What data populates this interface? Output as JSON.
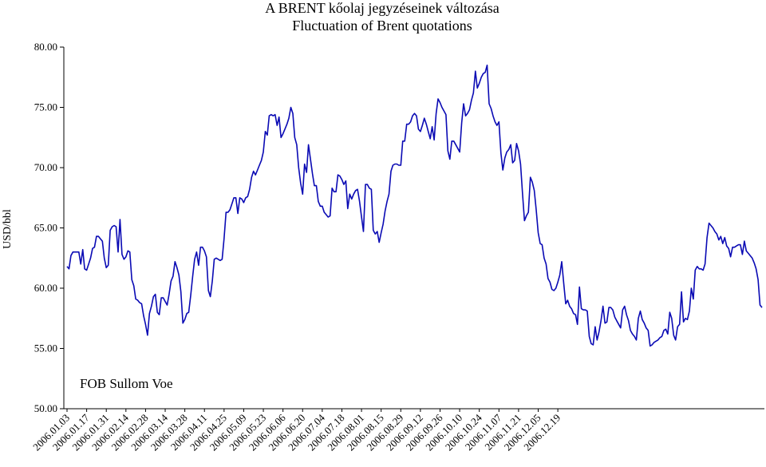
{
  "chart_data": {
    "type": "line",
    "title": "A BRENT kőolaj jegyzéseinek változása",
    "subtitle": "Fluctuation of Brent quotations",
    "ylabel": "USD/bbl",
    "xlabel": "",
    "annotation": "FOB Sullom Voe",
    "ylim": [
      50,
      80
    ],
    "y_ticks": [
      "50.00",
      "55.00",
      "60.00",
      "65.00",
      "70.00",
      "75.00",
      "80.00"
    ],
    "y_tick_values": [
      50,
      55,
      60,
      65,
      70,
      75,
      80
    ],
    "x_tick_labels": [
      "2006.01.03",
      "2006.01.17",
      "2006.01.31",
      "2006.02.14",
      "2006.02.28",
      "2006.03.14",
      "2006.03.28",
      "2006.04.11",
      "2006.04.25",
      "2006.05.09",
      "2006.05.23",
      "2006.06.06",
      "2006.06.20",
      "2006.07.04",
      "2006.07.18",
      "2006.08.01",
      "2006.08.15",
      "2006.08.29",
      "2006.09.12",
      "2006.09.26",
      "2006.10.10",
      "2006.10.24",
      "2006.11.07",
      "2006.11.21",
      "2006.12.05",
      "2006.12.19"
    ],
    "line_color": "#0a0ab4",
    "grid": false,
    "series": [
      {
        "values": [
          61.8,
          61.6,
          62.7,
          63.0,
          63.0,
          63.0,
          63.0,
          62.0,
          63.2,
          61.6,
          61.5,
          62.0,
          62.5,
          63.3,
          63.4,
          64.3,
          64.3,
          64.1,
          63.9,
          62.5,
          61.7,
          61.9,
          64.8,
          65.1,
          65.2,
          65.1,
          63.0,
          65.7,
          62.8,
          62.4,
          62.6,
          63.1,
          63.0,
          60.7,
          60.2,
          59.1,
          59.0,
          58.8,
          58.7,
          57.7,
          57.0,
          56.1,
          57.9,
          58.5,
          59.3,
          59.5,
          58.0,
          57.8,
          59.2,
          59.2,
          58.9,
          58.6,
          59.5,
          60.6,
          61.0,
          62.2,
          61.7,
          61.1,
          59.7,
          57.1,
          57.4,
          57.9,
          58.0,
          59.4,
          61.0,
          62.4,
          63.0,
          61.9,
          63.4,
          63.4,
          63.1,
          62.6,
          59.8,
          59.3,
          60.6,
          62.4,
          62.5,
          62.4,
          62.3,
          62.4,
          64.1,
          66.3,
          66.3,
          66.5,
          67.0,
          67.5,
          67.5,
          66.2,
          67.5,
          67.4,
          67.1,
          67.5,
          67.6,
          68.2,
          69.2,
          69.7,
          69.4,
          69.8,
          70.2,
          70.6,
          71.3,
          73.0,
          72.7,
          74.3,
          74.4,
          74.3,
          74.4,
          73.5,
          74.2,
          72.5,
          72.8,
          73.2,
          73.6,
          74.1,
          75.0,
          74.5,
          72.5,
          71.9,
          70.0,
          68.7,
          67.8,
          70.3,
          69.6,
          71.9,
          70.7,
          69.5,
          68.5,
          68.5,
          67.2,
          66.8,
          66.8,
          66.3,
          66.1,
          65.9,
          66.0,
          68.3,
          68.0,
          68.0,
          69.4,
          69.3,
          69.0,
          68.6,
          68.9,
          66.6,
          67.8,
          67.4,
          67.8,
          68.1,
          68.2,
          67.2,
          65.9,
          64.7,
          68.6,
          68.6,
          68.3,
          68.2,
          64.8,
          64.5,
          64.7,
          63.8,
          64.6,
          65.3,
          66.4,
          67.2,
          67.8,
          69.7,
          70.2,
          70.3,
          70.3,
          70.2,
          70.2,
          72.2,
          72.2,
          73.6,
          73.6,
          73.8,
          74.3,
          74.5,
          74.3,
          73.2,
          73.0,
          73.5,
          74.1,
          73.6,
          73.0,
          72.4,
          73.4,
          72.3,
          74.5,
          75.7,
          75.4,
          75.0,
          74.7,
          74.4,
          71.4,
          70.7,
          72.2,
          72.2,
          71.9,
          71.6,
          71.3,
          73.7,
          75.3,
          74.3,
          74.5,
          74.8,
          75.6,
          76.2,
          78.0,
          76.6,
          77.0,
          77.5,
          77.8,
          77.9,
          78.5,
          75.3,
          74.9,
          74.3,
          73.8,
          73.5,
          73.8,
          71.2,
          69.8,
          70.8,
          71.3,
          71.5,
          71.9,
          70.4,
          70.6,
          72.0,
          71.4,
          70.3,
          67.9,
          65.6,
          66.0,
          66.3,
          69.2,
          68.8,
          68.1,
          66.5,
          64.6,
          63.7,
          63.6,
          62.5,
          62.0,
          60.8,
          60.5,
          59.9,
          59.8,
          60.0,
          60.5,
          61.1,
          62.2,
          60.4,
          58.7,
          59.0,
          58.5,
          58.3,
          57.9,
          57.8,
          57.0,
          60.1,
          58.3,
          58.2,
          58.2,
          58.1,
          56.0,
          55.4,
          55.3,
          56.8,
          55.7,
          56.4,
          57.3,
          58.5,
          57.1,
          57.2,
          58.4,
          58.4,
          58.2,
          57.6,
          57.3,
          57.0,
          56.7,
          58.2,
          58.5,
          57.8,
          57.3,
          56.5,
          56.2,
          56.0,
          55.7,
          57.5,
          58.1,
          57.4,
          57.1,
          56.7,
          56.5,
          55.2,
          55.3,
          55.5,
          55.6,
          55.7,
          55.9,
          56.0,
          56.5,
          56.6,
          56.2,
          58.0,
          57.5,
          56.1,
          55.7,
          56.8,
          57.0,
          59.7,
          57.2,
          57.5,
          57.4,
          58.1,
          60.0,
          59.1,
          61.5,
          61.8,
          61.6,
          61.6,
          61.5,
          62.0,
          64.2,
          65.4,
          65.2,
          65.0,
          64.7,
          64.5,
          64.0,
          64.3,
          63.7,
          64.2,
          63.5,
          63.3,
          62.6,
          63.4,
          63.4,
          63.5,
          63.6,
          63.6,
          62.8,
          63.9,
          63.1,
          62.9,
          62.7,
          62.5,
          62.1,
          61.6,
          60.7,
          58.6,
          58.4
        ]
      }
    ]
  }
}
